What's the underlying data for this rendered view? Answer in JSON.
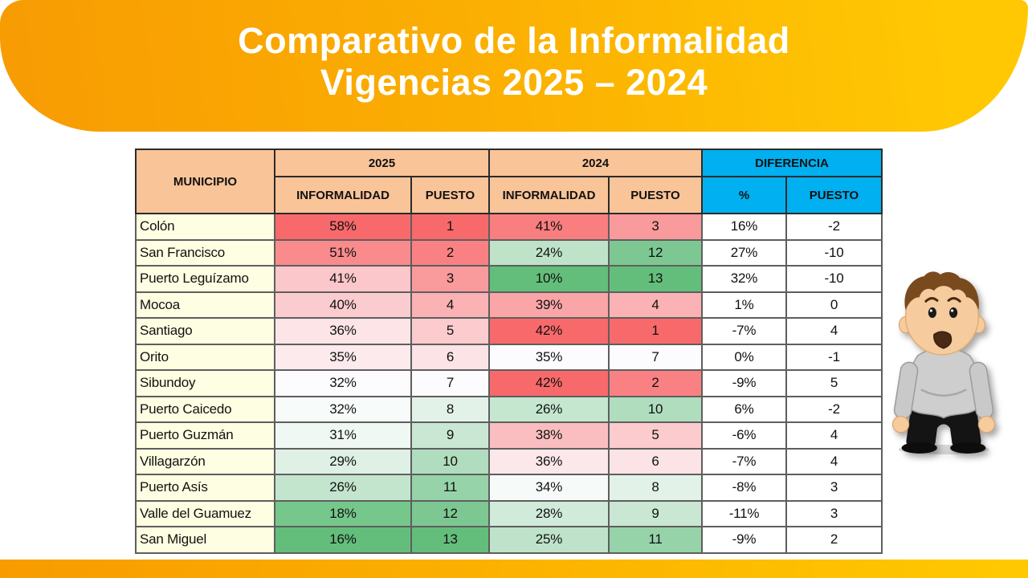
{
  "title": {
    "line1": "Comparativo de la Informalidad",
    "line2": "Vigencias 2025 – 2024"
  },
  "table": {
    "header": {
      "municipio": "MUNICIPIO",
      "group_2025": "2025",
      "group_2024": "2024",
      "group_diff": "DIFERENCIA",
      "informalidad": "INFORMALIDAD",
      "puesto": "PUESTO",
      "pct": "%"
    },
    "rows": [
      {
        "municipio": "Colón",
        "inf2025": "58%",
        "p2025": "1",
        "inf2024": "41%",
        "p2024": "3",
        "diff_pct": "16%",
        "diff_puesto": "-2",
        "c_inf2025": "#F8696B",
        "c_p2025": "#F8696B",
        "c_inf2024": "#F97E80",
        "c_p2024": "#F99A9C"
      },
      {
        "municipio": "San Francisco",
        "inf2025": "51%",
        "p2025": "2",
        "inf2024": "24%",
        "p2024": "12",
        "diff_pct": "27%",
        "diff_puesto": "-10",
        "c_inf2025": "#F98B8D",
        "c_p2025": "#F98183",
        "c_inf2024": "#BFE3C9",
        "c_p2024": "#7DC892"
      },
      {
        "municipio": "Puerto Leguízamo",
        "inf2025": "41%",
        "p2025": "3",
        "inf2024": "10%",
        "p2024": "13",
        "diff_pct": "32%",
        "diff_puesto": "-10",
        "c_inf2025": "#FBC7CA",
        "c_p2025": "#F99A9C",
        "c_inf2024": "#63BE7B",
        "c_p2024": "#63BE7B"
      },
      {
        "municipio": "Mocoa",
        "inf2025": "40%",
        "p2025": "4",
        "inf2024": "39%",
        "p2024": "4",
        "diff_pct": "1%",
        "diff_puesto": "0",
        "c_inf2025": "#FBCCCF",
        "c_p2025": "#FAB2B4",
        "c_inf2024": "#FAA5A7",
        "c_p2024": "#FAB2B4"
      },
      {
        "municipio": "Santiago",
        "inf2025": "36%",
        "p2025": "5",
        "inf2024": "42%",
        "p2024": "1",
        "diff_pct": "-7%",
        "diff_puesto": "4",
        "c_inf2025": "#FCE4E7",
        "c_p2025": "#FBCBCD",
        "c_inf2024": "#F8696B",
        "c_p2024": "#F8696B"
      },
      {
        "municipio": "Orito",
        "inf2025": "35%",
        "p2025": "6",
        "inf2024": "35%",
        "p2024": "7",
        "diff_pct": "0%",
        "diff_puesto": "-1",
        "c_inf2025": "#FCEAED",
        "c_p2025": "#FBE3E6",
        "c_inf2024": "#FCFCFF",
        "c_p2024": "#FCFCFF"
      },
      {
        "municipio": "Sibundoy",
        "inf2025": "32%",
        "p2025": "7",
        "inf2024": "42%",
        "p2024": "2",
        "diff_pct": "-9%",
        "diff_puesto": "5",
        "c_inf2025": "#FCFCFF",
        "c_p2025": "#FCFCFF",
        "c_inf2024": "#F8696B",
        "c_p2024": "#F98183"
      },
      {
        "municipio": "Puerto Caicedo",
        "inf2025": "32%",
        "p2025": "8",
        "inf2024": "26%",
        "p2024": "10",
        "diff_pct": "6%",
        "diff_puesto": "-2",
        "c_inf2025": "#F7FBF9",
        "c_p2025": "#E3F2E9",
        "c_inf2024": "#C5E6CF",
        "c_p2024": "#B0DDBE"
      },
      {
        "municipio": "Puerto Guzmán",
        "inf2025": "31%",
        "p2025": "9",
        "inf2024": "38%",
        "p2024": "5",
        "diff_pct": "-6%",
        "diff_puesto": "4",
        "c_inf2025": "#F0F8F3",
        "c_p2025": "#C9E7D3",
        "c_inf2024": "#FABEC0",
        "c_p2024": "#FBCBCD"
      },
      {
        "municipio": "Villagarzón",
        "inf2025": "29%",
        "p2025": "10",
        "inf2024": "36%",
        "p2024": "6",
        "diff_pct": "-7%",
        "diff_puesto": "4",
        "c_inf2025": "#DFF0E5",
        "c_p2025": "#B0DDBE",
        "c_inf2024": "#FCE7EA",
        "c_p2024": "#FBE3E6"
      },
      {
        "municipio": "Puerto Asís",
        "inf2025": "26%",
        "p2025": "11",
        "inf2024": "34%",
        "p2024": "8",
        "diff_pct": "-8%",
        "diff_puesto": "3",
        "c_inf2025": "#C3E5CE",
        "c_p2025": "#96D3A8",
        "c_inf2024": "#F6FAF8",
        "c_p2024": "#E3F2E9"
      },
      {
        "municipio": "Valle del Guamuez",
        "inf2025": "18%",
        "p2025": "12",
        "inf2024": "28%",
        "p2024": "9",
        "diff_pct": "-11%",
        "diff_puesto": "3",
        "c_inf2025": "#76C78C",
        "c_p2025": "#7DC892",
        "c_inf2024": "#D1EBDA",
        "c_p2024": "#C9E7D3"
      },
      {
        "municipio": "San Miguel",
        "inf2025": "16%",
        "p2025": "13",
        "inf2024": "25%",
        "p2024": "11",
        "diff_pct": "-9%",
        "diff_puesto": "2",
        "c_inf2025": "#63BE7B",
        "c_p2025": "#63BE7B",
        "c_inf2024": "#BFE3CA",
        "c_p2024": "#96D3A8"
      }
    ]
  },
  "colors": {
    "banner_gradient_from": "#F89B03",
    "banner_gradient_to": "#FFC803",
    "header_peach": "#FAC499",
    "header_blue": "#00B0F0",
    "municipio_bg": "#FEFEE2",
    "diff_bg": "#FFFFFF",
    "scale_red": "#F8696B",
    "scale_white": "#FCFCFF",
    "scale_green": "#63BE7B"
  },
  "character": {
    "name": "worried-boy-cartoon"
  }
}
